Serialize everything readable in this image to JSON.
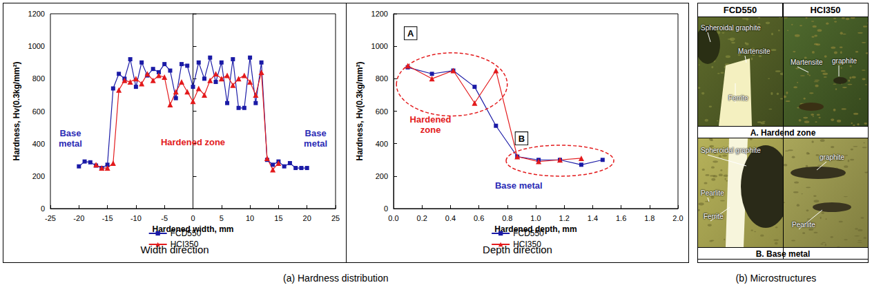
{
  "chart_data": [
    {
      "type": "line",
      "title": "Width direction",
      "x_label": "Hardened width, mm",
      "y_label": "Hardness, Hv(0.3kg/mm²)",
      "xlim": [
        -25,
        25
      ],
      "xticks": [
        -25,
        -20,
        -15,
        -10,
        -5,
        0,
        5,
        10,
        15,
        20,
        25
      ],
      "ylim": [
        0,
        1200
      ],
      "yticks": [
        0,
        200,
        400,
        600,
        800,
        1000,
        1200
      ],
      "grid": false,
      "legend": "upper right",
      "annotations": [
        {
          "text": "Base metal",
          "color": "#2b2bb5"
        },
        {
          "text": "Hardened zone",
          "color": "#e31a1c"
        },
        {
          "text": "Base metal",
          "color": "#2b2bb5"
        }
      ],
      "series": [
        {
          "name": "FCD550",
          "color": "#1a1aa6",
          "marker": "square",
          "line_style": "solid",
          "x": [
            -20,
            -19,
            -18,
            -17,
            -16,
            -15,
            -14,
            -13,
            -12,
            -11,
            -10,
            -9,
            -8,
            -7,
            -6,
            -5,
            -4,
            -3,
            -2,
            -1,
            0,
            1,
            2,
            3,
            4,
            5,
            6,
            7,
            8,
            9,
            10,
            11,
            12,
            13,
            14,
            15,
            16,
            17,
            18,
            19,
            20
          ],
          "values": [
            260,
            290,
            285,
            265,
            250,
            270,
            740,
            830,
            800,
            920,
            750,
            900,
            820,
            860,
            840,
            890,
            850,
            680,
            890,
            880,
            750,
            900,
            800,
            930,
            780,
            900,
            650,
            920,
            620,
            620,
            930,
            650,
            900,
            300,
            270,
            290,
            260,
            280,
            250,
            250,
            250
          ]
        },
        {
          "name": "HCI350",
          "color": "#e31a1c",
          "marker": "triangle",
          "line_style": "solid",
          "x": [
            -17,
            -16,
            -15,
            -14,
            -13,
            -12,
            -11,
            -10,
            -9,
            -8,
            -7,
            -6,
            -5,
            -4,
            -3,
            -2,
            -1,
            0,
            1,
            2,
            3,
            4,
            5,
            6,
            7,
            8,
            9,
            10,
            11,
            12,
            13,
            14,
            15
          ],
          "values": [
            270,
            250,
            250,
            280,
            730,
            790,
            780,
            800,
            770,
            830,
            790,
            820,
            810,
            640,
            720,
            780,
            720,
            660,
            740,
            700,
            790,
            830,
            800,
            820,
            760,
            800,
            820,
            780,
            700,
            840,
            310,
            240,
            280
          ]
        }
      ]
    },
    {
      "type": "line",
      "title": "Depth direction",
      "x_label": "Hardened depth, mm",
      "y_label": "Hardness, Hv(0.3kg/mm²)",
      "xlim": [
        0,
        2
      ],
      "xticks": [
        {
          "value": 0,
          "label": "0.0"
        },
        0.2,
        0.4,
        0.6,
        0.8,
        {
          "value": 1,
          "label": "1.0"
        },
        1.2,
        1.4,
        1.6,
        1.8,
        {
          "value": 2,
          "label": "2.0"
        }
      ],
      "ylim": [
        0,
        1200
      ],
      "yticks": [
        0,
        200,
        400,
        600,
        800,
        1000,
        1200
      ],
      "grid": false,
      "legend": "upper right",
      "annotations": [
        {
          "text": "A",
          "color": "#000000"
        },
        {
          "text": "Hardened zone",
          "color": "#e31a1c"
        },
        {
          "text": "B",
          "color": "#000000"
        },
        {
          "text": "Base metal",
          "color": "#2b2bb5"
        }
      ],
      "series": [
        {
          "name": "FCD550",
          "color": "#1a1aa6",
          "marker": "square",
          "line_style": "solid",
          "x": [
            0.1,
            0.27,
            0.42,
            0.57,
            0.72,
            0.87,
            1.02,
            1.17,
            1.32,
            1.47
          ],
          "values": [
            870,
            830,
            850,
            750,
            510,
            320,
            300,
            300,
            270,
            300
          ]
        },
        {
          "name": "HCI350",
          "color": "#e31a1c",
          "marker": "triangle",
          "line_style": "solid",
          "x": [
            0.1,
            0.27,
            0.42,
            0.57,
            0.72,
            0.87,
            1.02,
            1.17,
            1.32
          ],
          "values": [
            880,
            800,
            850,
            650,
            850,
            320,
            290,
            300,
            310
          ]
        }
      ]
    }
  ],
  "figure": {
    "captions": [
      "(a) Hardness distribution",
      "(b) Microstructures"
    ],
    "microstructures": {
      "columns": [
        "FCD550",
        "HCI350"
      ],
      "rows": [
        {
          "label": "A. Hardend zone",
          "cells": [
            [
              "Spheroidal graphite",
              "Martensite",
              "Ferrite"
            ],
            [
              "Martensite",
              "graphite"
            ]
          ]
        },
        {
          "label": "B. Base metal",
          "cells": [
            [
              "Spheroidal graphite",
              "Pearlite",
              "Ferrite"
            ],
            [
              "graphite",
              "Pearlite"
            ]
          ]
        }
      ]
    }
  }
}
